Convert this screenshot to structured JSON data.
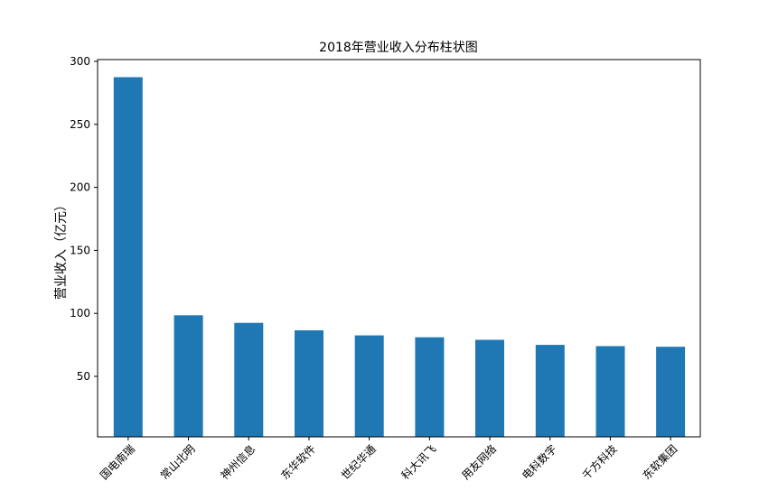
{
  "chart_data": {
    "type": "bar",
    "title": "2018年营业收入分布柱状图",
    "xlabel": "",
    "ylabel": "营业收入（亿元）",
    "categories": [
      "国电南瑞",
      "常山北明",
      "神州信息",
      "东华软件",
      "世纪华通",
      "科大讯飞",
      "用友网络",
      "电科数字",
      "千方科技",
      "东软集团"
    ],
    "values": [
      287.5,
      98.5,
      92.5,
      86.5,
      82.5,
      81.0,
      79.0,
      75.0,
      74.0,
      73.5
    ],
    "ylim": [
      0,
      300
    ],
    "yticks": [
      50,
      100,
      150,
      200,
      250,
      300
    ],
    "bar_color": "#1f77b4",
    "grid": false,
    "legend": "none"
  }
}
